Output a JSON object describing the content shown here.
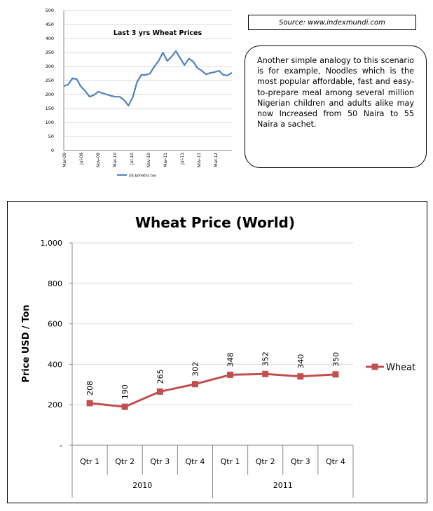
{
  "source": "Source: www.indexmundi.com",
  "callout_text": "Another simple analogy to this scenario is for example, Noodles which is the most popular affordable, fast and easy-to-prepare meal among several million Nigerian children and adults alike may now Increased from 50 Naira to 55 Naira a sachet.",
  "colors": {
    "main_series": "#C0504D",
    "small_series": "#4F81BD",
    "grid": "#d9d9d9"
  },
  "chart_data": [
    {
      "type": "line",
      "title": "Last 3 yrs Wheat Prices",
      "xlabel": "",
      "ylabel": "",
      "ylim": [
        0,
        500
      ],
      "yticks": [
        0,
        50,
        100,
        150,
        200,
        250,
        300,
        350,
        400,
        450,
        500
      ],
      "x_tick_labels": [
        "Mar-09",
        "Jul-09",
        "Nov-09",
        "Mar-10",
        "Jul-10",
        "Nov-10",
        "Mar-11",
        "Jul-11",
        "Nov-11",
        "Mar-12"
      ],
      "legend": "US $/metric ton",
      "series": [
        {
          "name": "US $/metric ton",
          "values": [
            230,
            235,
            258,
            255,
            228,
            212,
            192,
            198,
            210,
            205,
            200,
            195,
            192,
            192,
            180,
            160,
            190,
            245,
            270,
            270,
            275,
            300,
            320,
            350,
            320,
            335,
            355,
            330,
            305,
            328,
            318,
            295,
            285,
            272,
            277,
            280,
            285,
            270,
            268,
            278
          ]
        }
      ]
    },
    {
      "type": "line",
      "title": "Wheat Price (World)",
      "xlabel": "",
      "ylabel": "Price USD / Ton",
      "ylim": [
        0,
        1000
      ],
      "ytick_labels": [
        "-",
        "200",
        "400",
        "600",
        "800",
        "1,000"
      ],
      "categories": [
        "Qtr 1",
        "Qtr 2",
        "Qtr 3",
        "Qtr 4",
        "Qtr 1",
        "Qtr 2",
        "Qtr 3",
        "Qtr 4"
      ],
      "groups": [
        {
          "label": "2010",
          "size": 4
        },
        {
          "label": "2011",
          "size": 4
        }
      ],
      "legend": "right",
      "series": [
        {
          "name": "Wheat",
          "values": [
            208,
            190,
            265,
            302,
            348,
            352,
            340,
            350
          ]
        }
      ]
    }
  ]
}
